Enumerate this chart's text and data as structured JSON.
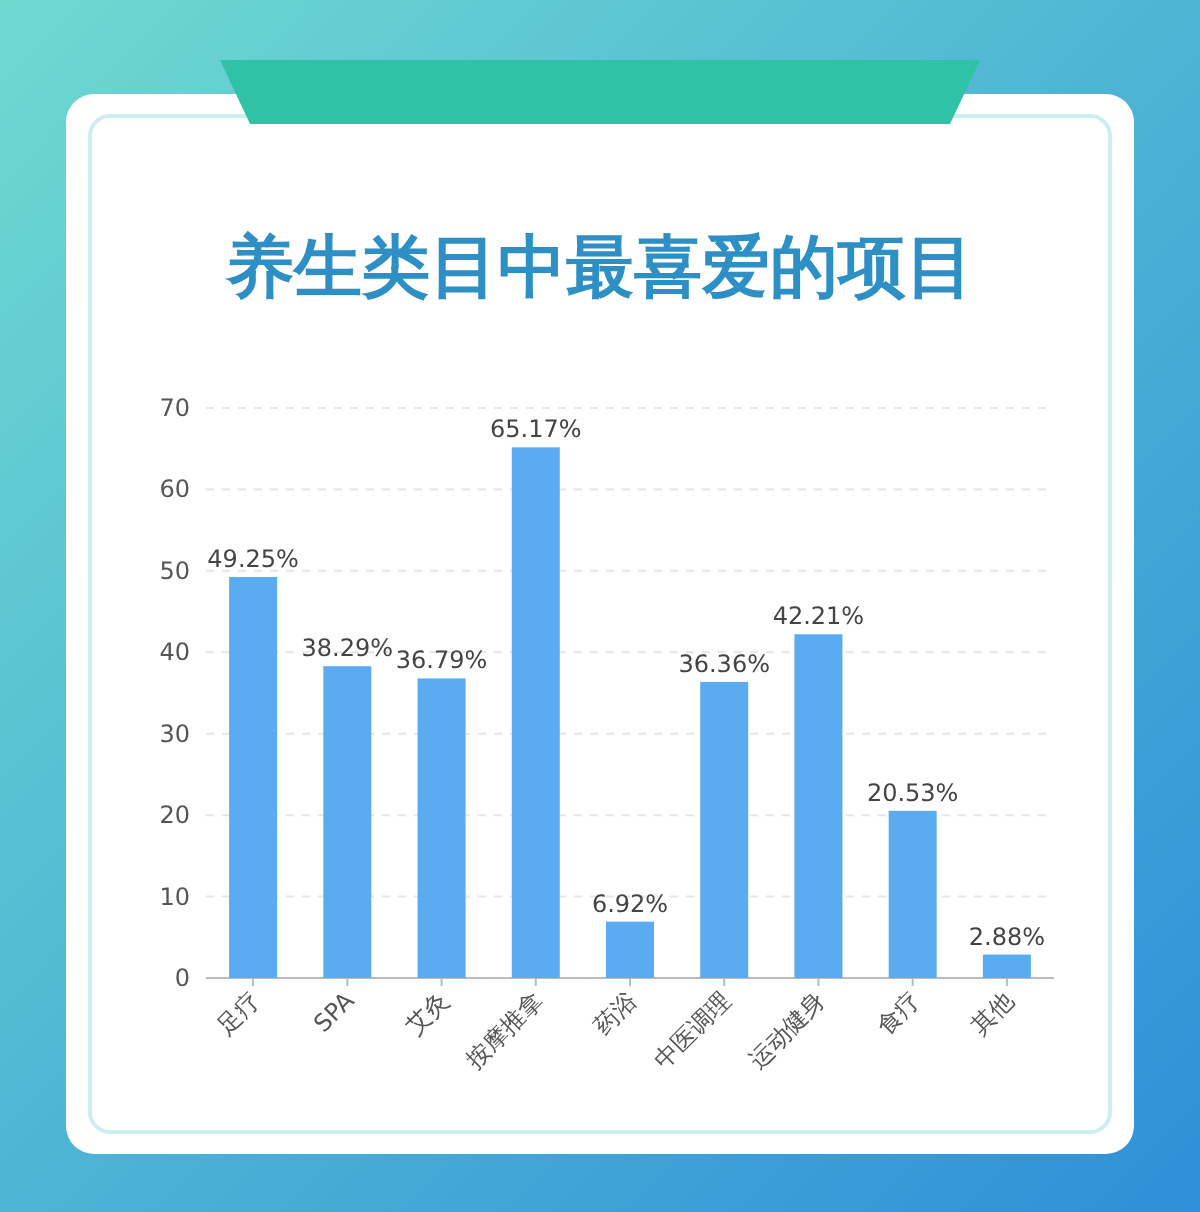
{
  "chart_data": {
    "type": "bar",
    "title": "养生类目中最喜爱的项目",
    "categories": [
      "足疗",
      "SPA",
      "艾灸",
      "按摩推拿",
      "药浴",
      "中医调理",
      "运动健身",
      "食疗",
      "其他"
    ],
    "values": [
      49.25,
      38.29,
      36.79,
      65.17,
      6.92,
      36.36,
      42.21,
      20.53,
      2.88
    ],
    "value_labels": [
      "49.25%",
      "38.29%",
      "36.79%",
      "65.17%",
      "6.92%",
      "36.36%",
      "42.21%",
      "20.53%",
      "2.88%"
    ],
    "color": "#5aabf0",
    "ylim": [
      0,
      70
    ],
    "yticks": [
      0,
      10,
      20,
      30,
      40,
      50,
      60,
      70
    ],
    "grid": "y"
  }
}
